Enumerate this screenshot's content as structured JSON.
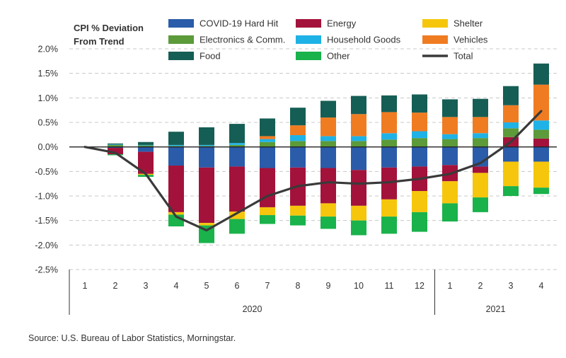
{
  "ytitle": {
    "line1": "CPI % Deviation",
    "line2": "From Trend"
  },
  "source": "Source: U.S. Bureau of Labor Statistics, Morningstar.",
  "chart_data": {
    "type": "bar",
    "stacked": true,
    "ylabel": "CPI % Deviation From Trend",
    "ylim": [
      -2.5,
      2.0
    ],
    "yticks": [
      2.0,
      1.5,
      1.0,
      0.5,
      0.0,
      -0.5,
      -1.0,
      -1.5,
      -2.0,
      -2.5
    ],
    "ytick_labels": [
      "2.0%",
      "1.5%",
      "1.0%",
      "0.5%",
      "0.0%",
      "-0.5%",
      "-1.0%",
      "-1.5%",
      "-2.0%",
      "-2.5%"
    ],
    "grid": true,
    "legend_position": "top",
    "categories": [
      "1",
      "2",
      "3",
      "4",
      "5",
      "6",
      "7",
      "8",
      "9",
      "10",
      "11",
      "12",
      "1",
      "2",
      "3",
      "4"
    ],
    "year_groups": [
      {
        "label": "2020",
        "from": 0,
        "to": 11
      },
      {
        "label": "2021",
        "from": 12,
        "to": 15
      }
    ],
    "series": [
      {
        "name": "COVID-19 Hard Hit",
        "color": "#2a5caa",
        "values": [
          0,
          -0.02,
          -0.1,
          -0.38,
          -0.42,
          -0.4,
          -0.43,
          -0.42,
          -0.43,
          -0.47,
          -0.42,
          -0.4,
          -0.37,
          -0.4,
          -0.3,
          -0.3
        ]
      },
      {
        "name": "Energy",
        "color": "#a3123a",
        "values": [
          0,
          -0.13,
          -0.45,
          -0.95,
          -1.13,
          -0.92,
          -0.8,
          -0.78,
          -0.72,
          -0.73,
          -0.65,
          -0.5,
          -0.33,
          -0.13,
          0.2,
          0.17
        ]
      },
      {
        "name": "Shelter",
        "color": "#f5c60c",
        "values": [
          0,
          0,
          -0.02,
          -0.05,
          -0.05,
          -0.15,
          -0.16,
          -0.2,
          -0.27,
          -0.3,
          -0.35,
          -0.43,
          -0.45,
          -0.5,
          -0.5,
          -0.53
        ]
      },
      {
        "name": "Electronics & Comm.",
        "color": "#5c9a3a",
        "values": [
          0,
          0.04,
          0.03,
          0.02,
          0.02,
          0.04,
          0.1,
          0.12,
          0.12,
          0.12,
          0.15,
          0.18,
          0.16,
          0.18,
          0.18,
          0.18
        ]
      },
      {
        "name": "Household Goods",
        "color": "#1fb2e6",
        "values": [
          0,
          0.01,
          0.01,
          0.02,
          0.02,
          0.04,
          0.06,
          0.12,
          0.1,
          0.1,
          0.13,
          0.14,
          0.1,
          0.1,
          0.12,
          0.19
        ]
      },
      {
        "name": "Vehicles",
        "color": "#f07c22",
        "values": [
          0,
          0,
          0,
          0,
          0,
          0,
          0.06,
          0.2,
          0.38,
          0.45,
          0.43,
          0.38,
          0.35,
          0.33,
          0.35,
          0.73
        ]
      },
      {
        "name": "Food",
        "color": "#155e55",
        "values": [
          0,
          0.02,
          0.06,
          0.27,
          0.36,
          0.39,
          0.36,
          0.36,
          0.34,
          0.37,
          0.34,
          0.37,
          0.36,
          0.37,
          0.39,
          0.43
        ]
      },
      {
        "name": "Other",
        "color": "#19b24b",
        "values": [
          0,
          -0.02,
          -0.04,
          -0.24,
          -0.36,
          -0.3,
          -0.18,
          -0.2,
          -0.25,
          -0.3,
          -0.35,
          -0.4,
          -0.37,
          -0.3,
          -0.2,
          -0.13
        ]
      },
      {
        "name": "Total",
        "type": "line",
        "color": "#3a3a3a",
        "values": [
          0.0,
          -0.12,
          -0.55,
          -1.42,
          -1.7,
          -1.35,
          -1.0,
          -0.8,
          -0.72,
          -0.75,
          -0.72,
          -0.65,
          -0.55,
          -0.33,
          0.1,
          0.73
        ]
      }
    ]
  }
}
